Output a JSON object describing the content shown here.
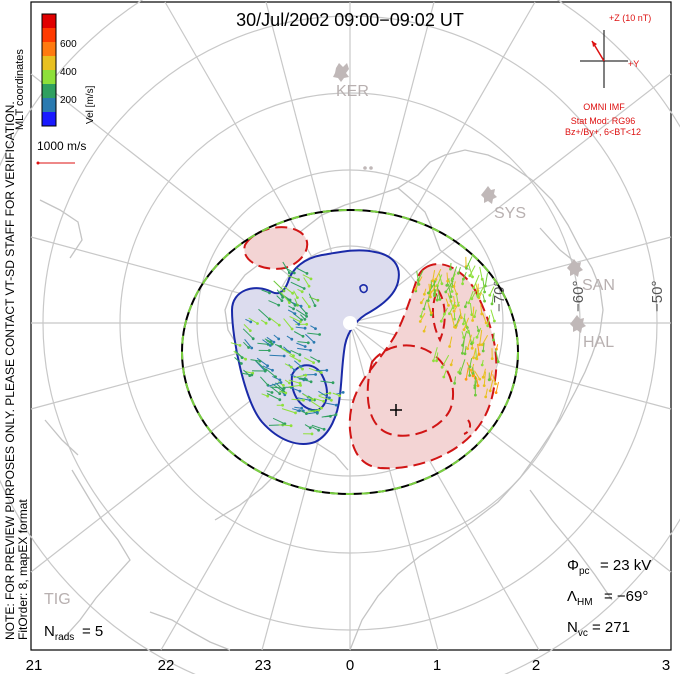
{
  "title": "30/Jul/2002 09:00−09:02 UT",
  "coords_label": "MLT coordinates",
  "colorbar": {
    "label": "Vel [m/s]",
    "ticks": [
      "600",
      "400",
      "200"
    ],
    "colors": [
      "#1a1aff",
      "#2a7ab0",
      "#2fa060",
      "#8ee03a",
      "#e8c020",
      "#ff7a10",
      "#ff3a00",
      "#e00000"
    ]
  },
  "vector_scale": "1000 m/s",
  "imf": {
    "axis_z": "+Z (10 nT)",
    "axis_y": "+Y",
    "source": "OMNI IMF",
    "stat_mod": "Stat Mod: RG96",
    "condition": "Bz+/By+, 6<BT<12"
  },
  "stations": [
    "KER",
    "SYS",
    "SAN",
    "HAL",
    "TIG"
  ],
  "latitude_labels": [
    "−70°",
    "−60°",
    "−50°"
  ],
  "mlt_labels": [
    "21",
    "22",
    "23",
    "0",
    "1",
    "2",
    "3"
  ],
  "note": "NOTE: FOR PREVIEW PURPOSES ONLY. PLEASE CONTACT VT-SD STAFF FOR VERIFICATION.",
  "fit_order": "FitOrder: 8, mapEX format",
  "stats": {
    "phi_pc": "= 23 kV",
    "lambda_hm": "= −69°",
    "n_vc": "= 271",
    "n_rads": "= 5"
  },
  "colors": {
    "positive_cell": "#d11515",
    "negative_cell": "#1a2aa8",
    "positive_fill": "#f3d4d4",
    "negative_fill": "#dcdcee",
    "boundary_green": "#7ad040",
    "grid": "#c8c8c8",
    "coast": "#c4c4c4"
  }
}
